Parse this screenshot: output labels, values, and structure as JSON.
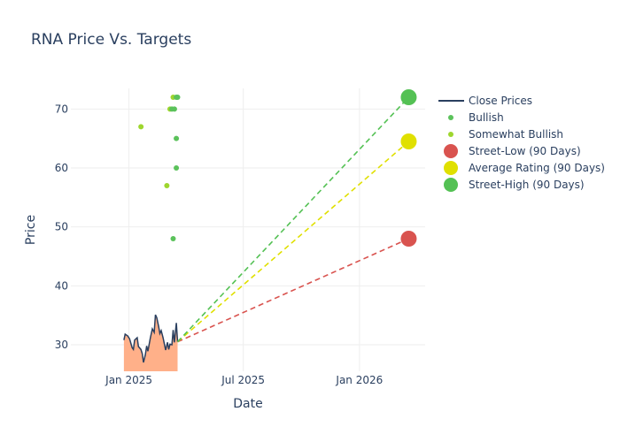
{
  "chart_data": {
    "type": "line",
    "title": "RNA Price Vs. Targets",
    "xlabel": "Date",
    "ylabel": "Price",
    "xlim": [
      "2024-10-01",
      "2026-04-15"
    ],
    "ylim": [
      25.5,
      73.5
    ],
    "x_ticks": [
      {
        "date": "2025-01-01",
        "label": "Jan 2025"
      },
      {
        "date": "2025-07-01",
        "label": "Jul 2025"
      },
      {
        "date": "2026-01-01",
        "label": "Jan 2026"
      }
    ],
    "y_ticks": [
      30,
      40,
      50,
      60,
      70
    ],
    "grid": true,
    "legend_position": "top-right",
    "close_prices": {
      "name": "Close Prices",
      "color": "#2a3f5f",
      "fill_color": "#ffb089",
      "points": [
        [
          "2024-12-24",
          30.8
        ],
        [
          "2024-12-26",
          31.8
        ],
        [
          "2024-12-30",
          31.5
        ],
        [
          "2025-01-02",
          31.0
        ],
        [
          "2025-01-06",
          29.5
        ],
        [
          "2025-01-08",
          29.2
        ],
        [
          "2025-01-10",
          30.8
        ],
        [
          "2025-01-14",
          31.2
        ],
        [
          "2025-01-16",
          29.7
        ],
        [
          "2025-01-20",
          29.2
        ],
        [
          "2025-01-22",
          28.5
        ],
        [
          "2025-01-24",
          27.0
        ],
        [
          "2025-01-27",
          28.3
        ],
        [
          "2025-01-29",
          29.8
        ],
        [
          "2025-01-31",
          28.9
        ],
        [
          "2025-02-04",
          31.2
        ],
        [
          "2025-02-07",
          32.7
        ],
        [
          "2025-02-10",
          32.1
        ],
        [
          "2025-02-12",
          35.1
        ],
        [
          "2025-02-14",
          34.6
        ],
        [
          "2025-02-17",
          33.1
        ],
        [
          "2025-02-19",
          31.9
        ],
        [
          "2025-02-21",
          32.4
        ],
        [
          "2025-02-24",
          31.2
        ],
        [
          "2025-02-26",
          30.2
        ],
        [
          "2025-02-28",
          29.1
        ],
        [
          "2025-03-03",
          30.4
        ],
        [
          "2025-03-05",
          29.2
        ],
        [
          "2025-03-07",
          30.1
        ],
        [
          "2025-03-10",
          30.0
        ],
        [
          "2025-03-12",
          32.5
        ],
        [
          "2025-03-14",
          30.4
        ],
        [
          "2025-03-17",
          33.7
        ],
        [
          "2025-03-19",
          30.5
        ]
      ]
    },
    "bullish": {
      "name": "Bullish",
      "color": "#5bc25b",
      "points": [
        [
          "2025-03-12",
          48
        ],
        [
          "2025-03-10",
          70
        ],
        [
          "2025-03-14",
          70
        ],
        [
          "2025-03-17",
          72
        ],
        [
          "2025-03-19",
          72
        ],
        [
          "2025-03-17",
          65
        ],
        [
          "2025-03-17",
          60
        ]
      ]
    },
    "somewhat_bullish": {
      "name": "Somewhat Bullish",
      "color": "#9ed62e",
      "points": [
        [
          "2025-01-20",
          67
        ],
        [
          "2025-03-02",
          57
        ],
        [
          "2025-03-07",
          70
        ],
        [
          "2025-03-12",
          72
        ]
      ]
    },
    "targets": [
      {
        "name": "Street-Low (90 Days)",
        "color": "#d9534f",
        "start": [
          "2025-03-19",
          30.5
        ],
        "end": [
          "2026-03-20",
          48
        ]
      },
      {
        "name": "Average Rating (90 Days)",
        "color": "#e0e000",
        "start": [
          "2025-03-19",
          30.5
        ],
        "end": [
          "2026-03-20",
          64.5
        ]
      },
      {
        "name": "Street-High (90 Days)",
        "color": "#54c154",
        "start": [
          "2025-03-19",
          30.5
        ],
        "end": [
          "2026-03-20",
          72
        ]
      }
    ]
  }
}
